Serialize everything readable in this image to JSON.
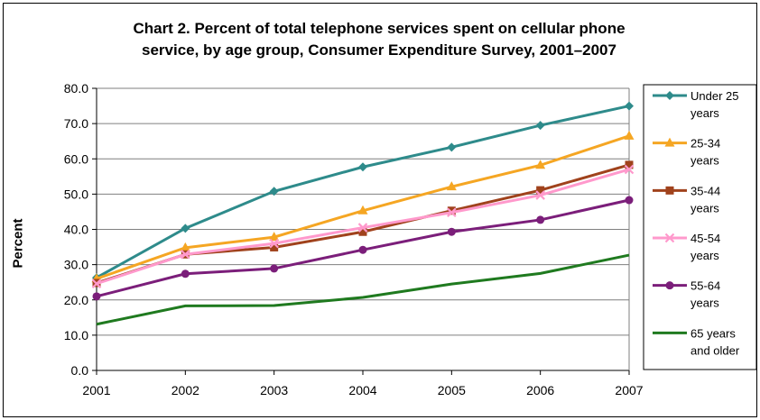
{
  "chart_data": {
    "type": "line",
    "title_lines": [
      "Chart 2. Percent of total telephone services spent on cellular phone",
      "service, by age group, Consumer Expenditure Survey, 2001–2007"
    ],
    "ylabel": "Percent",
    "xlabel": "",
    "categories": [
      "2001",
      "2002",
      "2003",
      "2004",
      "2005",
      "2006",
      "2007"
    ],
    "y_ticks": [
      "0.0",
      "10.0",
      "20.0",
      "30.0",
      "40.0",
      "50.0",
      "60.0",
      "70.0",
      "80.0"
    ],
    "ylim": [
      0,
      80
    ],
    "grid": "horizontal",
    "legend_position": "right",
    "series": [
      {
        "name_lines": [
          "Under 25",
          "years"
        ],
        "color": "#2E8B8B",
        "marker": "diamond",
        "values": [
          26.3,
          40.3,
          50.8,
          57.7,
          63.3,
          69.5,
          75.0
        ]
      },
      {
        "name_lines": [
          "25-34",
          "years"
        ],
        "color": "#F5A623",
        "marker": "triangle",
        "values": [
          26.0,
          34.8,
          37.8,
          45.3,
          52.1,
          58.2,
          66.5
        ]
      },
      {
        "name_lines": [
          "35-44",
          "years"
        ],
        "color": "#A0421C",
        "marker": "square",
        "values": [
          24.8,
          32.9,
          34.9,
          39.3,
          45.3,
          51.1,
          58.3
        ]
      },
      {
        "name_lines": [
          "45-54",
          "years"
        ],
        "color": "#FF99CC",
        "marker": "x",
        "values": [
          24.6,
          32.9,
          36.0,
          40.5,
          44.8,
          49.7,
          57.0
        ]
      },
      {
        "name_lines": [
          "55-64",
          "years"
        ],
        "color": "#7B1E7A",
        "marker": "circle",
        "values": [
          21.0,
          27.4,
          28.9,
          34.2,
          39.3,
          42.7,
          48.3
        ]
      },
      {
        "name_lines": [
          "65 years",
          "and older"
        ],
        "color": "#1F7A1F",
        "marker": "none",
        "values": [
          13.1,
          18.3,
          18.4,
          20.7,
          24.5,
          27.5,
          32.7
        ]
      }
    ]
  }
}
